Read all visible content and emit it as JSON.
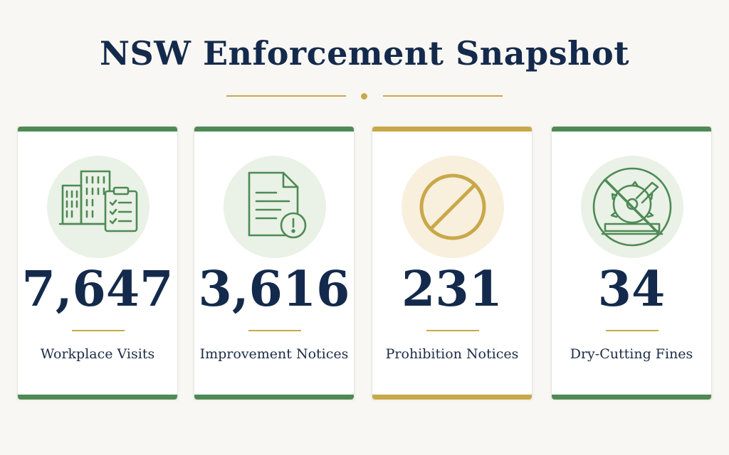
{
  "title": "NSW Enforcement Snapshot",
  "colors": {
    "navy": "#142a4c",
    "green": "#4e8a55",
    "gold": "#c9a84a",
    "background": "#f8f7f3"
  },
  "cards": [
    {
      "value": "7,647",
      "label": "Workplace Visits",
      "icon": "buildings-checklist-icon",
      "accent": "green"
    },
    {
      "value": "3,616",
      "label": "Improvement Notices",
      "icon": "document-warning-icon",
      "accent": "green"
    },
    {
      "value": "231",
      "label": "Prohibition Notices",
      "icon": "prohibition-icon",
      "accent": "gold"
    },
    {
      "value": "34",
      "label": "Dry-Cutting Fines",
      "icon": "no-saw-icon",
      "accent": "green"
    }
  ]
}
